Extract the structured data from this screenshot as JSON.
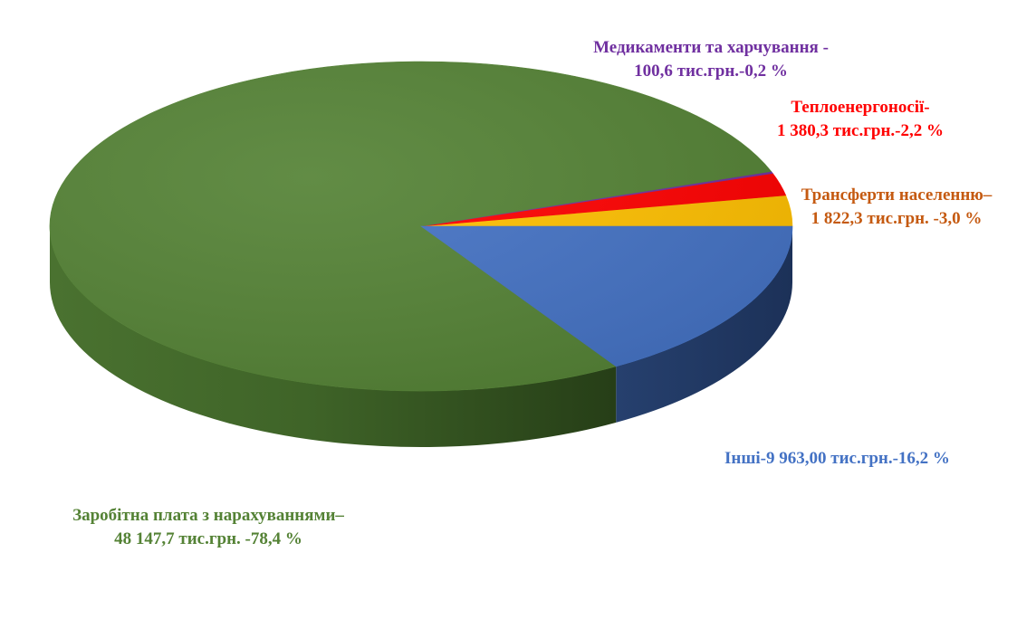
{
  "chart_data": {
    "type": "pie",
    "title": "",
    "slices": [
      {
        "label": "Заробітна плата з нарахуваннями",
        "value_text": "48 147,7 тис.грн.",
        "percent": 78.4,
        "color": "#548235",
        "line1": "Заробітна плата з нарахуваннями–",
        "line2": "48 147,7 тис.грн. -78,4 %"
      },
      {
        "label": "Медикаменти та харчування",
        "value_text": "100,6 тис.грн.",
        "percent": 0.2,
        "color": "#7030a0",
        "line1": "Медикаменти та харчування -",
        "line2": "100,6 тис.грн.-0,2 %"
      },
      {
        "label": "Теплоенергоносії",
        "value_text": "1 380,3 тис.грн.",
        "percent": 2.2,
        "color": "#ff0000",
        "line1": "Теплоенергоносії-",
        "line2": "1 380,3 тис.грн.-2,2 %"
      },
      {
        "label": "Трансферти населенню",
        "value_text": "1 822,3 тис.грн.",
        "percent": 3.0,
        "color": "#ffc000",
        "line1": "Трансферти населенню–",
        "line2": "1 822,3 тис.грн. -3,0 %"
      },
      {
        "label": "Інші",
        "value_text": "9 963,00 тис.грн.",
        "percent": 16.2,
        "color": "#4472c4",
        "line1": "Інші-9 963,00 тис.грн.-16,2 %"
      }
    ]
  }
}
